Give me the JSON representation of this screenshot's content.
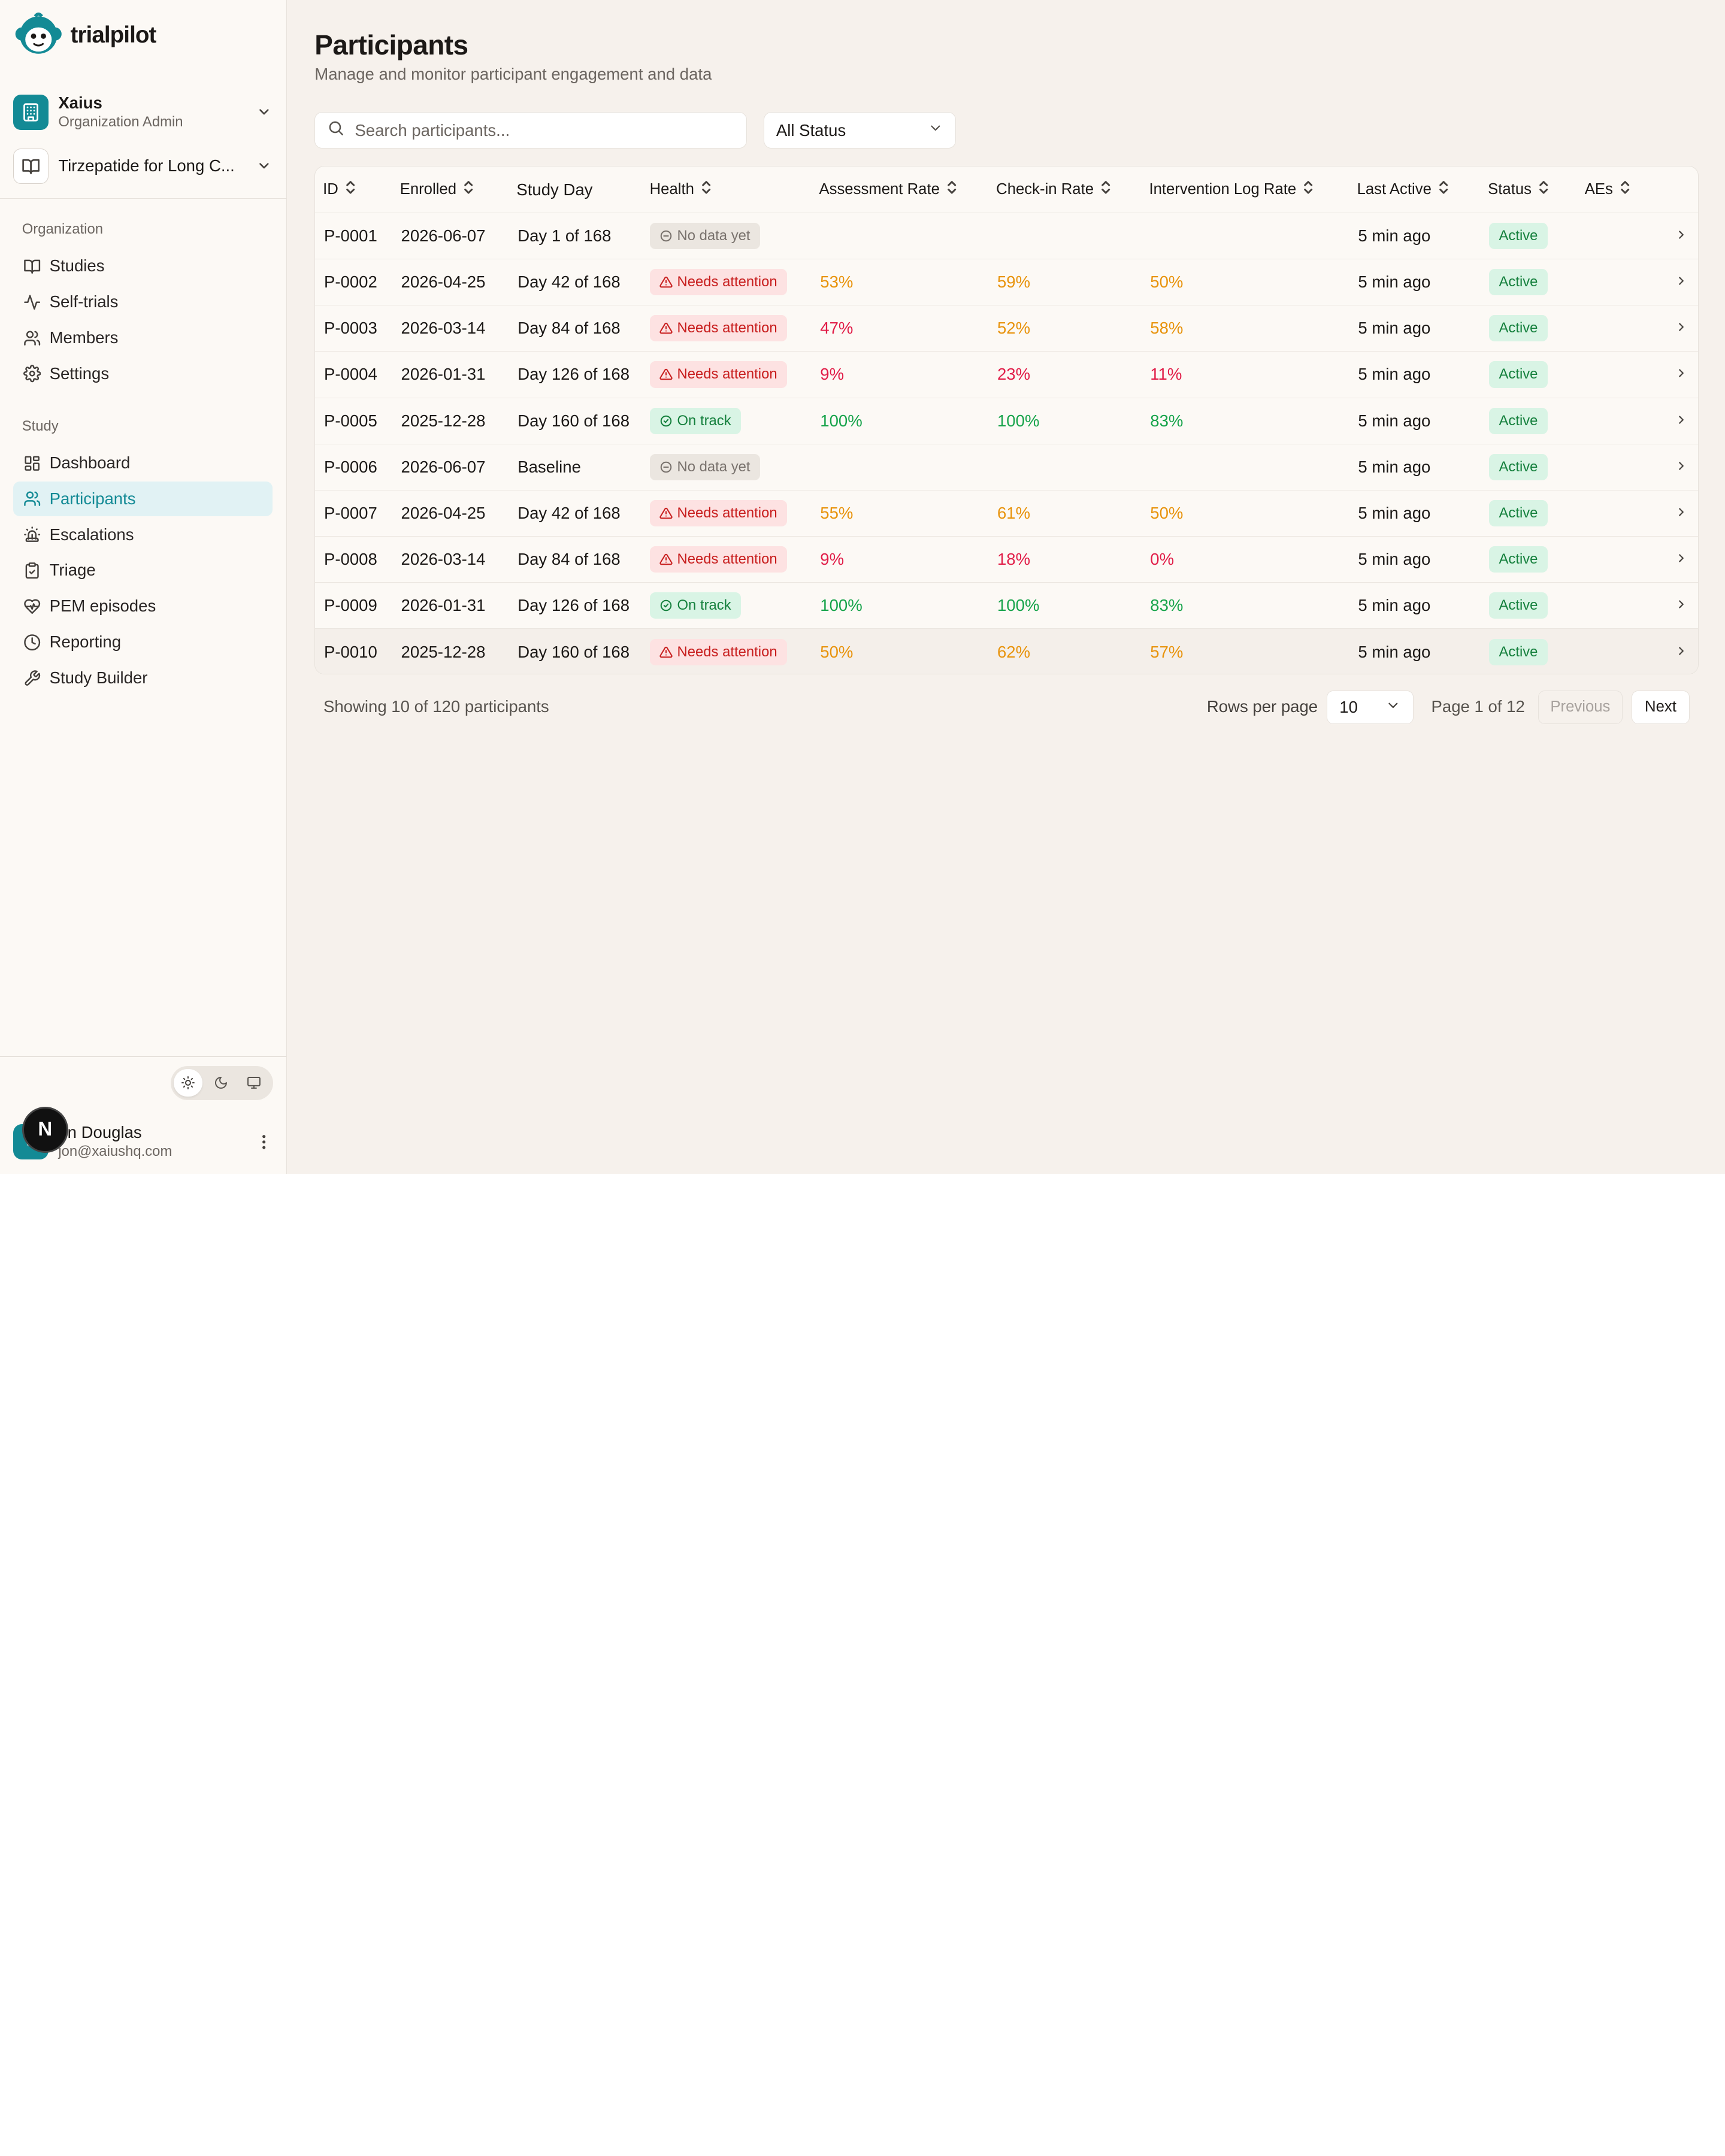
{
  "brand": {
    "name": "trialpilot",
    "color": "#138a95"
  },
  "org": {
    "name": "Xaius",
    "role": "Organization Admin"
  },
  "study": {
    "name": "Tirzepatide for Long C..."
  },
  "sidebar": {
    "org_section": "Organization",
    "org_items": [
      {
        "label": "Studies",
        "icon": "book-open-icon"
      },
      {
        "label": "Self-trials",
        "icon": "activity-icon"
      },
      {
        "label": "Members",
        "icon": "users-icon"
      },
      {
        "label": "Settings",
        "icon": "gear-icon"
      }
    ],
    "study_section": "Study",
    "study_items": [
      {
        "label": "Dashboard",
        "icon": "layout-dashboard-icon"
      },
      {
        "label": "Participants",
        "icon": "users-icon",
        "active": true
      },
      {
        "label": "Escalations",
        "icon": "siren-icon"
      },
      {
        "label": "Triage",
        "icon": "clipboard-check-icon"
      },
      {
        "label": "PEM episodes",
        "icon": "heart-pulse-icon"
      },
      {
        "label": "Reporting",
        "icon": "clock-icon"
      },
      {
        "label": "Study Builder",
        "icon": "wrench-icon"
      }
    ]
  },
  "theme": {
    "selected": "light",
    "options": [
      "sun-icon",
      "moon-icon",
      "monitor-icon"
    ]
  },
  "user": {
    "name": "on Douglas",
    "email": "jon@xaiushq.com",
    "avatar": "J",
    "overlay_badge": "N"
  },
  "page": {
    "title": "Participants",
    "subtitle": "Manage and monitor participant engagement and data"
  },
  "search": {
    "placeholder": "Search participants...",
    "value": ""
  },
  "filter": {
    "status": "All Status"
  },
  "table": {
    "columns": [
      "ID",
      "Enrolled",
      "Study Day",
      "Health",
      "Assessment Rate",
      "Check-in Rate",
      "Intervention Log Rate",
      "Last Active",
      "Status",
      "AEs"
    ],
    "rows": [
      {
        "id": "P-0001",
        "enrolled": "2026-06-07",
        "day": "Day 1 of 168",
        "health": "No data yet",
        "health_type": "none",
        "assessment": "",
        "checkin": "",
        "intervention": "",
        "assessment_level": "",
        "checkin_level": "",
        "intervention_level": "",
        "last_active": "5 min ago",
        "status": "Active"
      },
      {
        "id": "P-0002",
        "enrolled": "2026-04-25",
        "day": "Day 42 of 168",
        "health": "Needs attention",
        "health_type": "warn",
        "assessment": "53%",
        "checkin": "59%",
        "intervention": "50%",
        "assessment_level": "mid",
        "checkin_level": "mid",
        "intervention_level": "mid",
        "last_active": "5 min ago",
        "status": "Active"
      },
      {
        "id": "P-0003",
        "enrolled": "2026-03-14",
        "day": "Day 84 of 168",
        "health": "Needs attention",
        "health_type": "warn",
        "assessment": "47%",
        "checkin": "52%",
        "intervention": "58%",
        "assessment_level": "low",
        "checkin_level": "mid",
        "intervention_level": "mid",
        "last_active": "5 min ago",
        "status": "Active"
      },
      {
        "id": "P-0004",
        "enrolled": "2026-01-31",
        "day": "Day 126 of 168",
        "health": "Needs attention",
        "health_type": "warn",
        "assessment": "9%",
        "checkin": "23%",
        "intervention": "11%",
        "assessment_level": "low",
        "checkin_level": "low",
        "intervention_level": "low",
        "last_active": "5 min ago",
        "status": "Active"
      },
      {
        "id": "P-0005",
        "enrolled": "2025-12-28",
        "day": "Day 160 of 168",
        "health": "On track",
        "health_type": "ok",
        "assessment": "100%",
        "checkin": "100%",
        "intervention": "83%",
        "assessment_level": "high",
        "checkin_level": "high",
        "intervention_level": "high",
        "last_active": "5 min ago",
        "status": "Active"
      },
      {
        "id": "P-0006",
        "enrolled": "2026-06-07",
        "day": "Baseline",
        "health": "No data yet",
        "health_type": "none",
        "assessment": "",
        "checkin": "",
        "intervention": "",
        "assessment_level": "",
        "checkin_level": "",
        "intervention_level": "",
        "last_active": "5 min ago",
        "status": "Active"
      },
      {
        "id": "P-0007",
        "enrolled": "2026-04-25",
        "day": "Day 42 of 168",
        "health": "Needs attention",
        "health_type": "warn",
        "assessment": "55%",
        "checkin": "61%",
        "intervention": "50%",
        "assessment_level": "mid",
        "checkin_level": "mid",
        "intervention_level": "mid",
        "last_active": "5 min ago",
        "status": "Active"
      },
      {
        "id": "P-0008",
        "enrolled": "2026-03-14",
        "day": "Day 84 of 168",
        "health": "Needs attention",
        "health_type": "warn",
        "assessment": "9%",
        "checkin": "18%",
        "intervention": "0%",
        "assessment_level": "low",
        "checkin_level": "low",
        "intervention_level": "low",
        "last_active": "5 min ago",
        "status": "Active"
      },
      {
        "id": "P-0009",
        "enrolled": "2026-01-31",
        "day": "Day 126 of 168",
        "health": "On track",
        "health_type": "ok",
        "assessment": "100%",
        "checkin": "100%",
        "intervention": "83%",
        "assessment_level": "high",
        "checkin_level": "high",
        "intervention_level": "high",
        "last_active": "5 min ago",
        "status": "Active"
      },
      {
        "id": "P-0010",
        "enrolled": "2025-12-28",
        "day": "Day 160 of 168",
        "health": "Needs attention",
        "health_type": "warn",
        "assessment": "50%",
        "checkin": "62%",
        "intervention": "57%",
        "assessment_level": "mid",
        "checkin_level": "mid",
        "intervention_level": "mid",
        "last_active": "5 min ago",
        "status": "Active",
        "highlighted": true
      }
    ]
  },
  "rate_colors": {
    "high": "#16a34a",
    "mid": "#e8930c",
    "low": "#e11d48"
  },
  "pagination": {
    "summary": "Showing 10 of 120 participants",
    "rows_per_page_label": "Rows per page",
    "rows_per_page": "10",
    "page_info": "Page 1 of 12",
    "prev": "Previous",
    "next": "Next"
  }
}
